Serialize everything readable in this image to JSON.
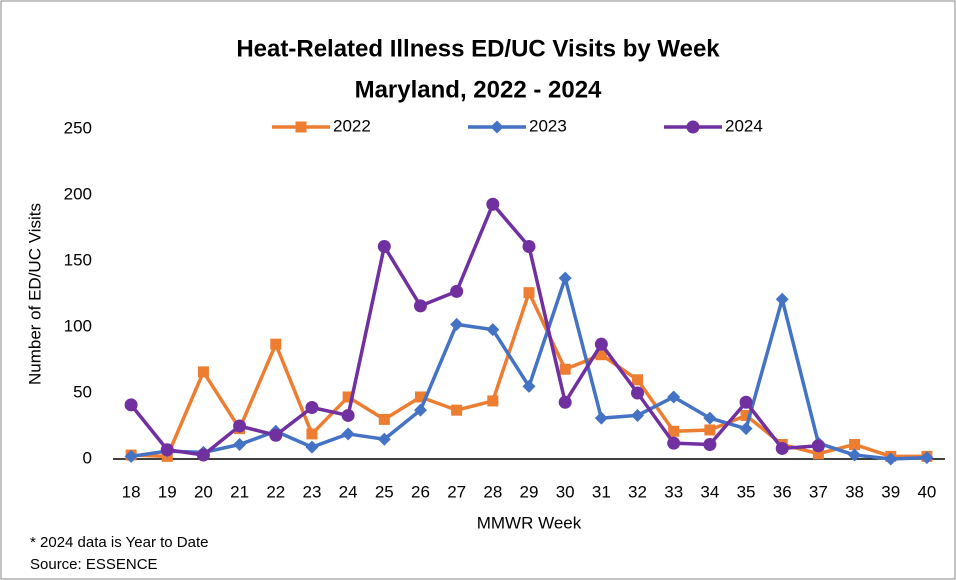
{
  "chart_data": {
    "type": "line",
    "title": [
      "Heat-Related Illness ED/UC Visits by Week",
      "Maryland, 2022 - 2024"
    ],
    "x_label": "MMWR Week",
    "y_label": "Number of ED/UC Visits",
    "notes": [
      "* 2024 data is Year to Date",
      "Source: ESSENCE"
    ],
    "categories": [
      18,
      19,
      20,
      21,
      22,
      23,
      24,
      25,
      26,
      27,
      28,
      29,
      30,
      31,
      32,
      33,
      34,
      35,
      36,
      37,
      38,
      39,
      40
    ],
    "series": [
      {
        "name": "2022",
        "color": "#ED7D31",
        "marker": "square",
        "values": [
          3,
          2,
          66,
          23,
          87,
          19,
          47,
          30,
          47,
          37,
          44,
          126,
          68,
          79,
          60,
          21,
          22,
          33,
          11,
          4,
          11,
          2,
          2
        ]
      },
      {
        "name": "2023",
        "color": "#4472C4",
        "marker": "diamond",
        "values": [
          2,
          6,
          5,
          11,
          21,
          9,
          19,
          15,
          37,
          102,
          98,
          55,
          137,
          31,
          33,
          47,
          31,
          23,
          121,
          12,
          3,
          0,
          1
        ]
      },
      {
        "name": "2024",
        "color": "#7030A0",
        "marker": "circle",
        "values": [
          41,
          7,
          3,
          25,
          18,
          39,
          33,
          161,
          116,
          127,
          193,
          161,
          43,
          87,
          50,
          12,
          11,
          43,
          8,
          10,
          null,
          null,
          null
        ]
      }
    ],
    "ylim": [
      0,
      250
    ],
    "yticks": [
      0,
      50,
      100,
      150,
      200,
      250
    ],
    "grid": false,
    "legend": "top"
  }
}
